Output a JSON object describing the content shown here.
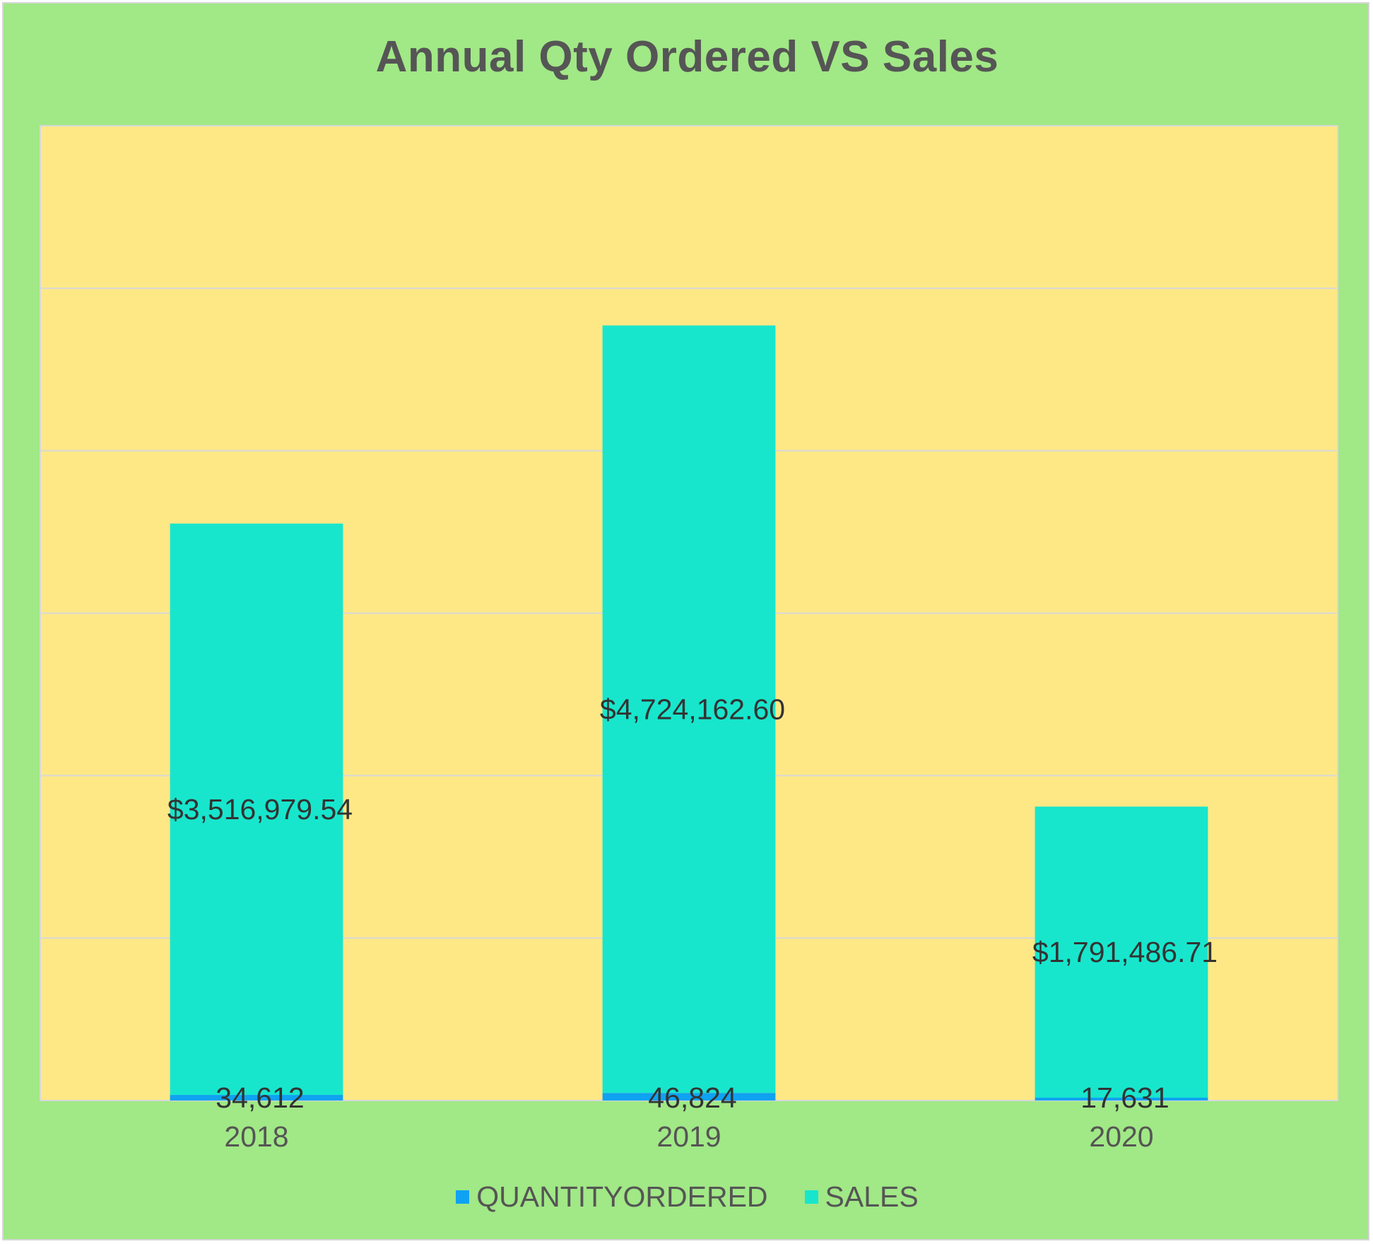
{
  "chart_data": {
    "type": "bar",
    "stacked": true,
    "title": "Annual Qty Ordered VS Sales",
    "xlabel": "",
    "ylabel": "",
    "categories": [
      "2018",
      "2019",
      "2020"
    ],
    "series": [
      {
        "name": "QUANTITYORDERED",
        "color": "#0fa2f2",
        "values": [
          34612,
          46824,
          17631
        ],
        "labels": [
          "34,612",
          "46,824",
          "17,631"
        ]
      },
      {
        "name": "SALES",
        "color": "#17e6cd",
        "values": [
          3516979.54,
          4724162.6,
          1791486.71
        ],
        "labels": [
          "$3,516,979.54",
          "$4,724,162.60",
          "$1,791,486.71"
        ]
      }
    ],
    "ylim": [
      0,
      6000000
    ],
    "gridlines": 6,
    "grid": true,
    "legend": "bottom",
    "colors": {
      "background": "#a1e886",
      "plot_area": "#fee886",
      "gridline": "#d8d8d8"
    }
  }
}
